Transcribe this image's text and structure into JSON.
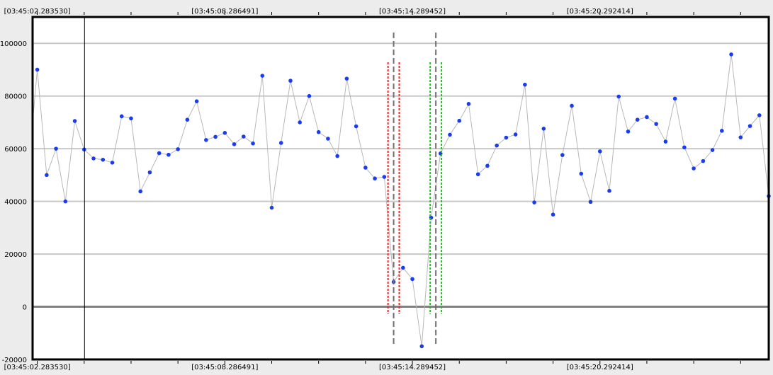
{
  "chart_data": {
    "type": "scatter",
    "ylim": [
      -20000,
      110000
    ],
    "y_ticks": [
      {
        "value": 100000,
        "label": "100000"
      },
      {
        "value": 80000,
        "label": "80000"
      },
      {
        "value": 60000,
        "label": "60000"
      },
      {
        "value": 40000,
        "label": "40000"
      },
      {
        "value": 20000,
        "label": "20000"
      },
      {
        "value": 0,
        "label": "0"
      },
      {
        "value": -20000,
        "label": "-20000"
      }
    ],
    "time_labels": [
      {
        "index": 0,
        "label": "[03:45:02.283530]"
      },
      {
        "index": 20,
        "label": "[03:45:08.286491]"
      },
      {
        "index": 40,
        "label": "[03:45:14.289452]"
      },
      {
        "index": 60,
        "label": "[03:45:20.292414]"
      }
    ],
    "x_range": [
      -0.5,
      78
    ],
    "values": [
      90000,
      50000,
      60000,
      40000,
      70500,
      59700,
      56300,
      55800,
      54700,
      72300,
      71500,
      43800,
      51000,
      58300,
      57700,
      59800,
      71000,
      78000,
      63300,
      64500,
      66000,
      61700,
      64600,
      62000,
      87700,
      37600,
      62200,
      85800,
      70000,
      80000,
      66300,
      63800,
      57200,
      86600,
      68500,
      52800,
      48700,
      49300,
      9400,
      14800,
      10500,
      -15000,
      33800,
      58200,
      65300,
      70600,
      77000,
      50300,
      53500,
      61200,
      64200,
      65400,
      84300,
      39600,
      67600,
      35000,
      57600,
      76300,
      50500,
      39800,
      59000,
      44000,
      79800,
      66500,
      71000,
      72000,
      69400,
      62700,
      79000,
      60500,
      52500,
      55300,
      59500,
      66800,
      95800,
      64300,
      68600,
      72700,
      42000
    ],
    "cursor_index": 5,
    "markers": [
      {
        "type": "gray-dashed",
        "x": 38,
        "color": "#707070"
      },
      {
        "type": "gray-dashed",
        "x": 42.5,
        "color": "#707070"
      },
      {
        "type": "red-dotted",
        "x": 37.4,
        "color": "#ff2020"
      },
      {
        "type": "red-dotted",
        "x": 38.6,
        "color": "#ff2020"
      },
      {
        "type": "green-dotted",
        "x": 41.9,
        "color": "#20c020"
      },
      {
        "type": "green-dotted",
        "x": 43.1,
        "color": "#20c020"
      }
    ],
    "colors": {
      "point": "#1a3cf0",
      "line": "#b8b8b8",
      "grid": "#c8c8c8",
      "zero_line": "#808080",
      "cursor": "#000000"
    }
  }
}
